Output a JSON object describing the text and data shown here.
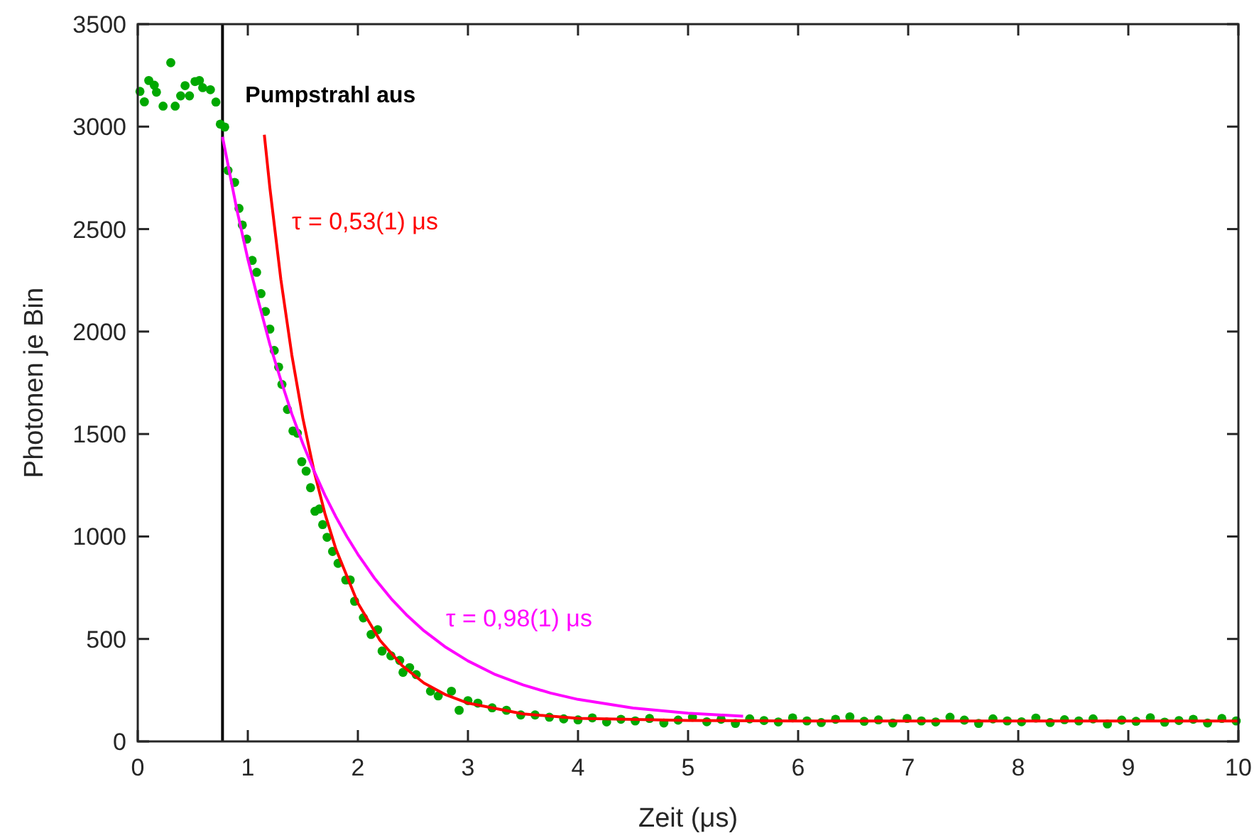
{
  "chart_data": {
    "type": "scatter",
    "xlabel": "Zeit (μs)",
    "ylabel": "Photonen je Bin",
    "xlim": [
      0,
      10
    ],
    "ylim": [
      0,
      3500
    ],
    "xticks": [
      0,
      1,
      2,
      3,
      4,
      5,
      6,
      7,
      8,
      9,
      10
    ],
    "yticks": [
      0,
      500,
      1000,
      1500,
      2000,
      2500,
      3000,
      3500
    ],
    "grid": false,
    "ref_lines": [
      {
        "axis": "x",
        "value": 0.77,
        "label": "Pumpstrahl aus",
        "color": "#000000"
      }
    ],
    "series": [
      {
        "marker": "circle",
        "color": "#00a800",
        "x": [
          0.02,
          0.06,
          0.1,
          0.15,
          0.17,
          0.23,
          0.3,
          0.34,
          0.39,
          0.43,
          0.47,
          0.52,
          0.56,
          0.59,
          0.66,
          0.71,
          0.75,
          0.79,
          0.82,
          0.88,
          0.92,
          0.95,
          0.99,
          1.04,
          1.08,
          1.12,
          1.16,
          1.2,
          1.24,
          1.28,
          1.31,
          1.36,
          1.41,
          1.45,
          1.49,
          1.53,
          1.57,
          1.61,
          1.65,
          1.68,
          1.72,
          1.77,
          1.82,
          1.89,
          1.93,
          1.97,
          2.05,
          2.12,
          2.18,
          2.22,
          2.3,
          2.38,
          2.41,
          2.47,
          2.53,
          2.66,
          2.73,
          2.85,
          2.92,
          3.0,
          3.09,
          3.22,
          3.35,
          3.48,
          3.61,
          3.74,
          3.87,
          4.0,
          4.13,
          4.26,
          4.39,
          4.52,
          4.65,
          4.78,
          4.91,
          5.04,
          5.17,
          5.3,
          5.43,
          5.56,
          5.69,
          5.82,
          5.95,
          6.08,
          6.21,
          6.34,
          6.47,
          6.6,
          6.73,
          6.86,
          6.99,
          7.12,
          7.25,
          7.38,
          7.51,
          7.64,
          7.77,
          7.9,
          8.03,
          8.16,
          8.29,
          8.42,
          8.55,
          8.68,
          8.81,
          8.94,
          9.07,
          9.2,
          9.33,
          9.46,
          9.59,
          9.72,
          9.85,
          9.98
        ],
        "values": [
          3172,
          3121,
          3225,
          3202,
          3168,
          3100,
          3312,
          3100,
          3150,
          3200,
          3150,
          3220,
          3225,
          3190,
          3180,
          3120,
          3012,
          2998,
          2786,
          2728,
          2601,
          2520,
          2451,
          2347,
          2289,
          2185,
          2098,
          2012,
          1908,
          1827,
          1742,
          1620,
          1515,
          1504,
          1365,
          1319,
          1238,
          1123,
          1134,
          1058,
          996,
          927,
          869,
          788,
          788,
          684,
          603,
          522,
          545,
          441,
          418,
          395,
          337,
          360,
          326,
          245,
          222,
          245,
          152,
          199,
          187,
          164,
          152,
          129,
          129,
          118,
          110,
          105,
          115,
          95,
          108,
          100,
          112,
          90,
          104,
          118,
          96,
          108,
          88,
          110,
          102,
          95,
          115,
          100,
          92,
          108,
          120,
          98,
          105,
          90,
          112,
          100,
          95,
          118,
          104,
          88,
          110,
          100,
          96,
          114,
          92,
          106,
          100,
          110,
          85,
          104,
          98,
          116,
          94,
          102,
          108,
          90,
          112,
          100
        ]
      },
      {
        "type": "line",
        "name": "τ = 0,53(1) μs",
        "color": "#ff0000",
        "x": [
          1.15,
          1.2,
          1.3,
          1.4,
          1.5,
          1.6,
          1.7,
          1.8,
          2.0,
          2.2,
          2.4,
          2.6,
          2.8,
          3.0,
          3.5,
          4,
          5,
          6,
          7,
          8,
          9,
          10
        ],
        "values": [
          2960,
          2703,
          2255,
          1885,
          1577,
          1323,
          1113,
          939,
          675,
          494,
          371,
          285,
          227,
          187,
          134,
          113,
          102,
          100,
          100,
          100,
          100,
          100
        ]
      },
      {
        "type": "line",
        "name": "τ = 0,98(1) μs",
        "color": "#ff00ff",
        "x": [
          0.77,
          0.9,
          1.0,
          1.1,
          1.2,
          1.3,
          1.4,
          1.5,
          1.6,
          1.7,
          1.8,
          1.9,
          2.0,
          2.15,
          2.3,
          2.45,
          2.6,
          2.8,
          3.0,
          3.25,
          3.5,
          3.75,
          4,
          4.5,
          5,
          5.5
        ],
        "values": [
          2950,
          2596,
          2354,
          2141,
          1938,
          1763,
          1598,
          1453,
          1322,
          1202,
          1096,
          1000,
          913,
          797,
          698,
          613,
          540,
          459,
          393,
          326,
          276,
          236,
          205,
          163,
          138,
          123
        ]
      }
    ]
  }
}
